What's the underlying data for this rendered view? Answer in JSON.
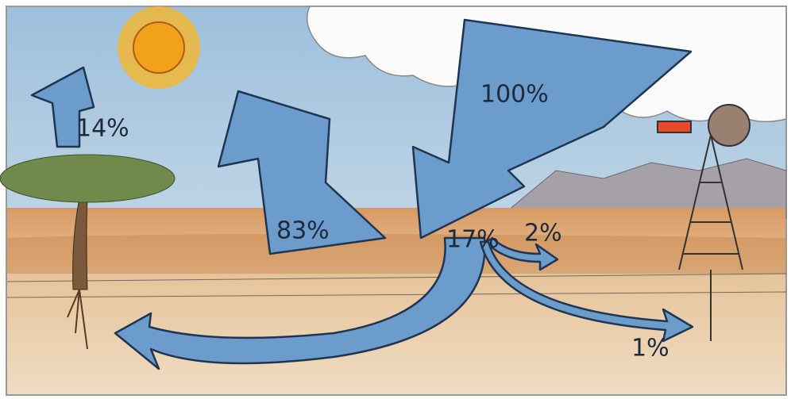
{
  "arrows": [
    {
      "label": "100%"
    },
    {
      "label": "83%"
    },
    {
      "label": "14%"
    },
    {
      "label": "17%"
    },
    {
      "label": "2%"
    },
    {
      "label": "1%"
    }
  ]
}
